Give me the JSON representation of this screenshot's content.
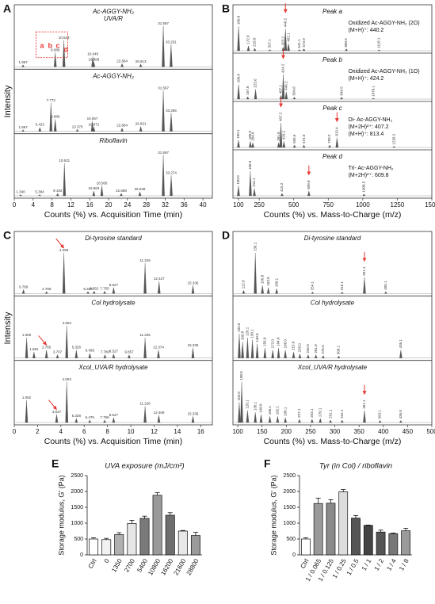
{
  "chart_data": [
    {
      "type": "spectrum",
      "panel": "A",
      "xlabel": "Counts (%) vs. Acquisition Time (min)",
      "ylabel": "Intensity",
      "xlim": [
        0,
        42
      ],
      "xticks": [
        0,
        4,
        8,
        12,
        16,
        20,
        24,
        28,
        32,
        36,
        40
      ],
      "ylim": [
        0,
        100
      ],
      "color": "#555555",
      "subplots": [
        {
          "title": "Ac-AGGY-NH₂",
          "subtitle": "UVA/R",
          "box_labels": [
            "a",
            "b",
            "c",
            "d"
          ],
          "box_color": "#e53935",
          "x": [
            1.867,
            8.686,
            10.523,
            16.649,
            16.868,
            22.864,
            26.813,
            31.597,
            33.251
          ],
          "peak_labels": [
            "1.867",
            "8.686",
            "10.523",
            "16.649",
            "16.868",
            "22.864",
            "26.813",
            "31.597",
            "33.251"
          ],
          "values": [
            5,
            35,
            65,
            25,
            12,
            8,
            7,
            100,
            55
          ]
        },
        {
          "title": "Ac-AGGY-NH₂",
          "x": [
            1.867,
            5.423,
            7.772,
            8.686,
            13.37,
            16.557,
            16.871,
            22.864,
            26.821,
            31.597,
            33.266
          ],
          "peak_labels": [
            "1.867",
            "5.423",
            "7.772",
            "8.686",
            "13.370",
            "16.557",
            "16.871",
            "22.864",
            "26.821",
            "31.597",
            "33.266"
          ],
          "values": [
            4,
            10,
            70,
            30,
            5,
            25,
            10,
            8,
            12,
            100,
            45
          ]
        },
        {
          "title": "Riboflavin",
          "x": [
            1.34,
            5.384,
            9.192,
            10.631,
            16.863,
            18.566,
            22.688,
            26.639,
            31.597,
            33.274
          ],
          "peak_labels": [
            "1.340",
            "5.384",
            "9.192",
            "10.631",
            "16.863",
            "18.566",
            "22.688",
            "26.639",
            "31.597",
            "33.274"
          ],
          "values": [
            3,
            3,
            6,
            80,
            12,
            25,
            6,
            10,
            100,
            50
          ]
        }
      ]
    },
    {
      "type": "spectrum",
      "panel": "B",
      "xlabel": "Counts (%) vs. Mass-to-Charge (m/z)",
      "vertical_labels": true,
      "arrow_color": "#e53935",
      "xlim": [
        60,
        1500
      ],
      "xticks": [
        100,
        250,
        500,
        750,
        1000,
        1250,
        1500
      ],
      "ylim": [
        0,
        100
      ],
      "color": "#555555",
      "subplots": [
        {
          "title": "Peak a",
          "annotations": [
            "Oxidized Ac-AGGY-NH₂ (2O)",
            "(M+H)⁺: 440.2"
          ],
          "arrows": [
            440.2
          ],
          "x": [
            100.8,
            172.0,
            218.0,
            327.1,
            423.2,
            440.2,
            462.1,
            541.1,
            573.9,
            880.5,
            1118.1
          ],
          "peak_labels": [
            "100.8",
            "172.0",
            "218.0",
            "327.1",
            "423.2",
            "440.2",
            "462.1",
            "541.1",
            "573.9",
            "880.5",
            "1118.1"
          ],
          "values": [
            100,
            20,
            10,
            5,
            15,
            90,
            30,
            5,
            8,
            8,
            4
          ]
        },
        {
          "title": "Peak b",
          "annotations": [
            "Oxidized Ac-AGGY-NH₂ (1O)",
            "(M+H)⁺: 424.2"
          ],
          "arrows": [
            424.2
          ],
          "x": [
            100.8,
            167.0,
            223.6,
            407.1,
            424.2,
            446.2,
            504.6,
            846.5,
            1076.1
          ],
          "peak_labels": [
            "100.8",
            "167.0",
            "223.6",
            "407.1",
            "424.2",
            "446.2",
            "504.6",
            "846.5",
            "1076.1"
          ],
          "values": [
            60,
            10,
            40,
            15,
            100,
            30,
            8,
            8,
            4
          ]
        },
        {
          "title": "Peak c",
          "annotations": [
            "Di- Ac-AGGY-NH₂",
            "(M+2H)²⁺: 407.2",
            "(M+H)⁺: 813.4"
          ],
          "arrows": [
            407.2,
            813.4
          ],
          "x": [
            100.1,
            186.0,
            204.0,
            391.0,
            407.2,
            429.2,
            505.6,
            574.0,
            760.2,
            813.4,
            1226.2
          ],
          "peak_labels": [
            "100.1",
            "186.0",
            "204.0",
            "391.0",
            "407.2",
            "429.2",
            "505.6",
            "574.0",
            "760.2",
            "813.4",
            "1226.2"
          ],
          "values": [
            30,
            25,
            20,
            20,
            100,
            25,
            10,
            10,
            10,
            40,
            5
          ]
        },
        {
          "title": "Peak d",
          "annotations": [
            "Tri- Ac-AGGY-NH₂",
            "(M+2H)²⁺: 609.8"
          ],
          "arrows": [
            609.8
          ],
          "x": [
            100.0,
            186.0,
            215.1,
            415.2,
            609.8,
            1008.5
          ],
          "peak_labels": [
            "100.0",
            "186.0",
            "215.1",
            "415.2",
            "609.8",
            "1008.5"
          ],
          "values": [
            40,
            100,
            30,
            10,
            20,
            8
          ]
        }
      ]
    },
    {
      "type": "spectrum",
      "panel": "C",
      "xlabel": "Counts (%) vs. Acquisition Time (min)",
      "ylabel": "Intensity",
      "arrow_color": "#e53935",
      "xlim": [
        0,
        17
      ],
      "xticks": [
        0,
        2,
        4,
        6,
        8,
        10,
        12,
        14,
        16
      ],
      "ylim": [
        0,
        100
      ],
      "color": "#555555",
      "subplots": [
        {
          "title": "Di-tyrosine standard",
          "arrows": [
            4.259
          ],
          "x": [
            0.789,
            2.769,
            4.259,
            6.328,
            6.852,
            7.755,
            8.527,
            11.226,
            12.427,
            15.336
          ],
          "peak_labels": [
            "0.789",
            "2.769",
            "4.259",
            "6.328",
            "6.852",
            "7.755",
            "8.527",
            "11.226",
            "12.427",
            "15.336"
          ],
          "values": [
            10,
            5,
            100,
            5,
            6,
            6,
            15,
            75,
            30,
            20
          ]
        },
        {
          "title": "Col hydrolysate",
          "arrows": [
            2.765
          ],
          "x": [
            1.06,
            1.691,
            2.765,
            3.707,
            4.504,
            5.328,
            6.485,
            7.78,
            8.527,
            9.857,
            11.226,
            12.374,
            15.336
          ],
          "peak_labels": [
            "1.060",
            "1.691",
            "2.765",
            "3.707",
            "4.504",
            "5.328",
            "6.485",
            "7.780",
            "8.527",
            "9.857",
            "11.226",
            "12.374",
            "15.336"
          ],
          "values": [
            50,
            15,
            20,
            8,
            80,
            20,
            12,
            8,
            10,
            8,
            50,
            20,
            25
          ]
        },
        {
          "title": "Xcol_UVA/R hydrolysate",
          "arrows": [
            3.637
          ],
          "x": [
            1.052,
            3.637,
            4.504,
            5.328,
            6.476,
            7.756,
            8.527,
            11.226,
            12.409,
            15.336
          ],
          "peak_labels": [
            "1.052",
            "3.637",
            "4.504",
            "5.328",
            "6.476",
            "7.756",
            "8.527",
            "11.226",
            "12.409",
            "15.336"
          ],
          "values": [
            55,
            20,
            100,
            10,
            6,
            6,
            12,
            40,
            18,
            15
          ]
        }
      ]
    },
    {
      "type": "spectrum",
      "panel": "D",
      "xlabel": "Counts (%) vs. Mass-to-Charge (m/z)",
      "vertical_labels": true,
      "arrow_color": "#e53935",
      "xlim": [
        90,
        500
      ],
      "xticks": [
        100,
        150,
        200,
        250,
        300,
        350,
        400,
        450,
        500
      ],
      "ylim": [
        0,
        100
      ],
      "color": "#555555",
      "subplots": [
        {
          "title": "Di-tyrosine standard",
          "arrows": [
            361.1
          ],
          "x": [
            112.0,
            136.1,
            150.8,
            163.0,
            180.1,
            254.1,
            315.1,
            361.1,
            405.1
          ],
          "peak_labels": [
            "112.0",
            "136.1",
            "150.8",
            "163.0",
            "180.1",
            "254.1",
            "315.1",
            "361.1",
            "405.1"
          ],
          "values": [
            8,
            100,
            20,
            15,
            12,
            4,
            4,
            40,
            5
          ]
        },
        {
          "title": "Col hydrolysate",
          "x": [
            103.0,
            109.8,
            120.1,
            130.1,
            140.0,
            156.0,
            172.0,
            184.0,
            198.0,
            215.0,
            228.0,
            245.0,
            261.0,
            276.0,
            308.1,
            436.1
          ],
          "peak_labels": [
            "103.0",
            "109.8",
            "120.1",
            "130.1",
            "140.0",
            "156.0",
            "172.0",
            "184.0",
            "198.0",
            "215.0",
            "228.0",
            "245.0",
            "261.0",
            "276.0",
            "308.1",
            "436.1"
          ],
          "values": [
            60,
            40,
            50,
            45,
            35,
            25,
            20,
            25,
            20,
            15,
            10,
            8,
            8,
            6,
            5,
            20
          ]
        },
        {
          "title": "Xcol_UVA/R hydrolysate",
          "arrows": [
            361.1
          ],
          "x": [
            103.0,
            108.0,
            120.1,
            136.1,
            148.0,
            166.1,
            182.1,
            198.1,
            227.1,
            253.1,
            270.1,
            291.1,
            315.1,
            361.1,
            393.1,
            436.0
          ],
          "peak_labels": [
            "103.0",
            "108.0",
            "120.1",
            "136.1",
            "148.0",
            "166.1",
            "182.1",
            "198.1",
            "227.1",
            "253.1",
            "270.1",
            "291.1",
            "315.1",
            "361.1",
            "393.1",
            "436.0"
          ],
          "values": [
            50,
            100,
            30,
            25,
            20,
            15,
            15,
            12,
            8,
            8,
            10,
            6,
            6,
            30,
            5,
            5
          ]
        }
      ]
    },
    {
      "type": "bar",
      "panel": "E",
      "title": "UVA exposure (mJ/cm²)",
      "ylabel": "Storage modulus, G' (Pa)",
      "ylim": [
        0,
        2500
      ],
      "yticks": [
        0,
        500,
        1000,
        1500,
        2000,
        2500
      ],
      "categories": [
        "Ctrl",
        "0",
        "1350",
        "2700",
        "5400",
        "10800",
        "16200",
        "21600",
        "28800"
      ],
      "values": [
        500,
        480,
        640,
        990,
        1150,
        1880,
        1250,
        750,
        610
      ],
      "errors": [
        40,
        40,
        60,
        100,
        70,
        80,
        80,
        20,
        100
      ],
      "colors": [
        "#ffffff",
        "#f2f2f2",
        "#b0b0b0",
        "#e6e6e6",
        "#7a7a7a",
        "#9a9a9a",
        "#6e6e6e",
        "#e8e8e8",
        "#9a9a9a"
      ]
    },
    {
      "type": "bar",
      "panel": "F",
      "title": "Tyr (in Col) / riboflavin",
      "ylabel": "Storage modulus, G' (Pa)",
      "ylim": [
        0,
        2500
      ],
      "yticks": [
        0,
        500,
        1000,
        1500,
        2000,
        2500
      ],
      "categories": [
        "Ctrl",
        "1 / 0.065",
        "1 / 0.125",
        "1 / 0.25",
        "1 / 0.5",
        "1 / 1",
        "1 / 2",
        "1 / 4",
        "1 / 8"
      ],
      "values": [
        500,
        1620,
        1630,
        1990,
        1160,
        930,
        720,
        670,
        760
      ],
      "errors": [
        40,
        170,
        110,
        70,
        80,
        10,
        60,
        20,
        80
      ],
      "colors": [
        "#ffffff",
        "#9a9a9a",
        "#8a8a8a",
        "#dddddd",
        "#555555",
        "#444444",
        "#555555",
        "#777777",
        "#9a9a9a"
      ]
    }
  ]
}
